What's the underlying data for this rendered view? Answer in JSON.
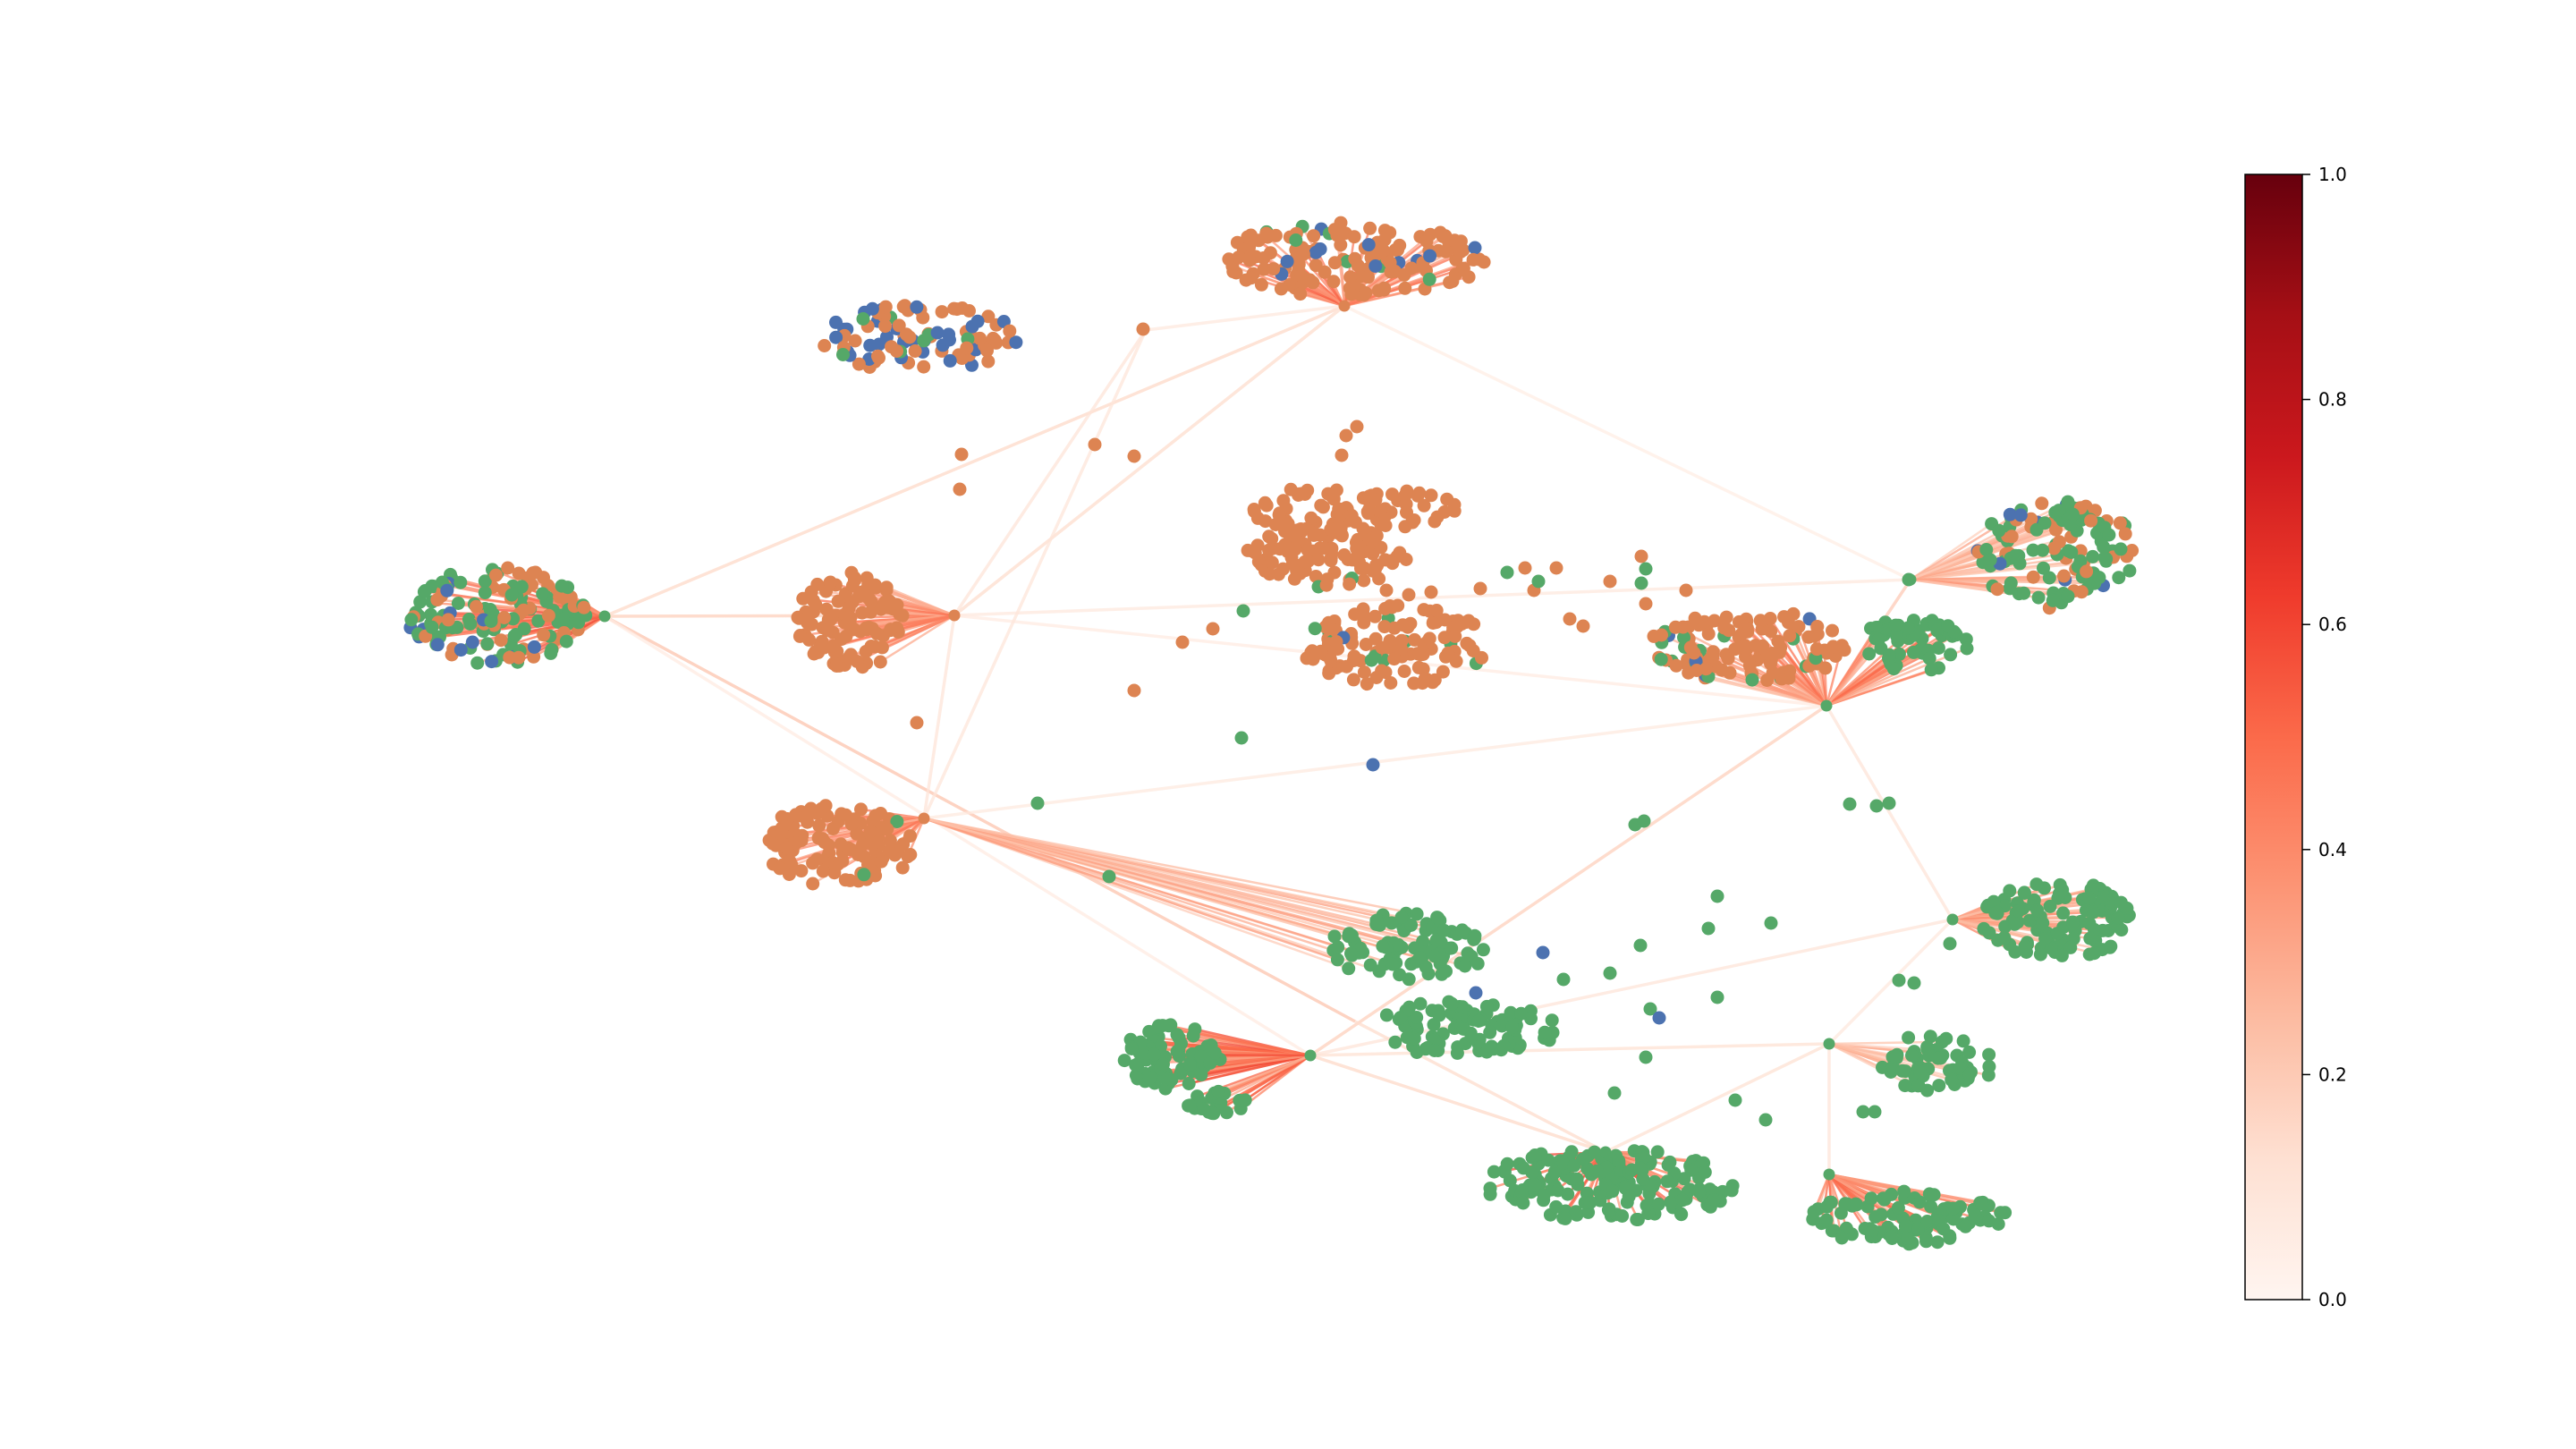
{
  "node_colors": {
    "orange": "#DD8452",
    "green": "#55A868",
    "blue": "#4C72B0"
  },
  "edge_colormap": "Reds",
  "colorbar": {
    "min": 0.0,
    "max": 1.0,
    "tick_labels": [
      "0.0",
      "0.2",
      "0.4",
      "0.6",
      "0.8",
      "1.0"
    ],
    "tick_values": [
      0.0,
      0.2,
      0.4,
      0.6,
      0.8,
      1.0
    ],
    "stops": [
      "#fff5f0",
      "#fee0d2",
      "#fcbba1",
      "#fc9272",
      "#fb6a4a",
      "#ef3b2c",
      "#cb181d",
      "#a50f15",
      "#67000d"
    ]
  },
  "graph": {
    "hub_count": 16,
    "hubs_with_cluster_edges": 14
  }
}
